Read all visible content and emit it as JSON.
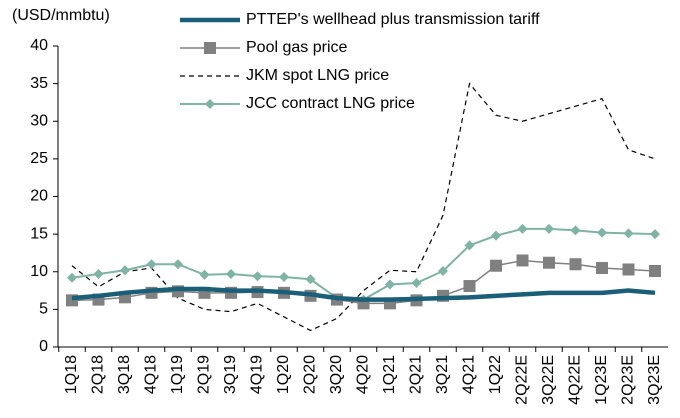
{
  "chart_data": {
    "type": "line",
    "ylabel": "(USD/mmbtu)",
    "categories": [
      "1Q18",
      "2Q18",
      "3Q18",
      "4Q18",
      "1Q19",
      "2Q19",
      "3Q19",
      "4Q19",
      "1Q20",
      "2Q20",
      "3Q20",
      "4Q20",
      "1Q21",
      "2Q21",
      "3Q21",
      "4Q21",
      "1Q22",
      "2Q22E",
      "3Q22E",
      "4Q22E",
      "1Q23E",
      "2Q23E",
      "3Q23E"
    ],
    "ylim": [
      0,
      40
    ],
    "yticks": [
      0,
      5,
      10,
      15,
      20,
      25,
      30,
      35,
      40
    ],
    "series": [
      {
        "name": "PTTEP's wellhead plus transmission tariff",
        "color": "#1a5e78",
        "style": "thick",
        "values": [
          6.5,
          6.8,
          7.2,
          7.5,
          7.7,
          7.7,
          7.5,
          7.5,
          7.3,
          7.0,
          6.5,
          6.3,
          6.3,
          6.4,
          6.5,
          6.6,
          6.8,
          7.0,
          7.2,
          7.2,
          7.2,
          7.5,
          7.2
        ]
      },
      {
        "name": "Pool gas price",
        "color": "#808080",
        "style": "square",
        "values": [
          6.2,
          6.3,
          6.6,
          7.2,
          7.4,
          7.2,
          7.2,
          7.3,
          7.2,
          6.8,
          6.3,
          5.8,
          5.8,
          6.2,
          6.8,
          8.1,
          10.8,
          11.5,
          11.2,
          11.0,
          10.5,
          10.3,
          10.1
        ]
      },
      {
        "name": "JKM spot LNG price",
        "color": "#000000",
        "style": "dashed",
        "values": [
          10.8,
          8.0,
          10.0,
          10.5,
          6.5,
          5.0,
          4.7,
          5.8,
          4.0,
          2.2,
          3.8,
          7.5,
          10.2,
          10.0,
          17.5,
          35.0,
          30.8,
          30.0,
          31.0,
          32.0,
          33.0,
          26.2,
          25.0
        ]
      },
      {
        "name": "JCC contract LNG price",
        "color": "#7fb3a3",
        "style": "diamond",
        "values": [
          9.2,
          9.7,
          10.2,
          11.0,
          11.0,
          9.6,
          9.7,
          9.4,
          9.3,
          9.0,
          6.5,
          6.3,
          8.3,
          8.5,
          10.1,
          13.5,
          14.8,
          15.7,
          15.7,
          15.5,
          15.2,
          15.1,
          15.0
        ]
      }
    ]
  }
}
